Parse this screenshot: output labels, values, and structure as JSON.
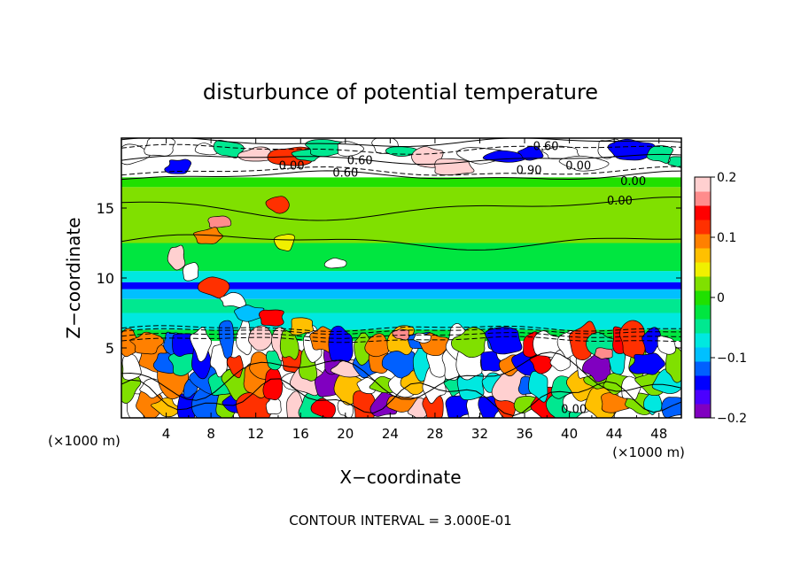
{
  "chart_data": {
    "type": "heatmap",
    "title": "disturbunce of potential temperature",
    "xlabel": "X−coordinate",
    "ylabel": "Z−coordinate",
    "x_unit": "(×1000 m)",
    "x_unit_right": "(×1000 m)",
    "x_ticks": [
      "4",
      "8",
      "12",
      "16",
      "20",
      "24",
      "28",
      "32",
      "36",
      "40",
      "44",
      "48"
    ],
    "x_tick_values": [
      4,
      8,
      12,
      16,
      20,
      24,
      28,
      32,
      36,
      40,
      44,
      48
    ],
    "y_ticks": [
      "5",
      "10",
      "15"
    ],
    "y_tick_values": [
      5,
      10,
      15
    ],
    "xlim": [
      0,
      50
    ],
    "ylim": [
      0,
      20
    ],
    "colorbar": {
      "ticks": [
        "0.2",
        "0.1",
        "0",
        "−0.1",
        "−0.2"
      ],
      "tick_values": [
        0.2,
        0.1,
        0,
        -0.1,
        -0.2
      ],
      "range": [
        -0.2,
        0.2
      ],
      "colors": [
        "#8000c0",
        "#4b00ff",
        "#0000ff",
        "#0060ff",
        "#00c0ff",
        "#00e8e0",
        "#00e890",
        "#00e640",
        "#20e000",
        "#80e000",
        "#f0f000",
        "#ffc000",
        "#ff8000",
        "#ff3000",
        "#ff0000",
        "#ff8c8c",
        "#ffd0d0"
      ]
    },
    "bands": [
      {
        "z": [
          0.0,
          5.5
        ],
        "value": "mixed"
      },
      {
        "z": [
          5.5,
          6.3
        ],
        "value": -0.03
      },
      {
        "z": [
          6.3,
          7.5
        ],
        "value": -0.06
      },
      {
        "z": [
          7.5,
          8.5
        ],
        "value": -0.04
      },
      {
        "z": [
          8.5,
          9.2
        ],
        "value": -0.09
      },
      {
        "z": [
          9.2,
          9.7
        ],
        "value": -0.14
      },
      {
        "z": [
          9.7,
          10.5
        ],
        "value": -0.07
      },
      {
        "z": [
          10.5,
          12.5
        ],
        "value": -0.02
      },
      {
        "z": [
          12.5,
          16.5
        ],
        "value": 0.02
      },
      {
        "z": [
          16.5,
          17.2
        ],
        "value": 0.0
      },
      {
        "z": [
          17.2,
          20.0
        ],
        "value": "mixed"
      }
    ],
    "contour_labels": [
      {
        "x": 37.9,
        "z": 19.4,
        "text": "0.60"
      },
      {
        "x": 15.2,
        "z": 18.0,
        "text": "0.00"
      },
      {
        "x": 21.3,
        "z": 18.4,
        "text": "0.60"
      },
      {
        "x": 20.0,
        "z": 17.5,
        "text": "0.60"
      },
      {
        "x": 36.4,
        "z": 17.7,
        "text": "0.90"
      },
      {
        "x": 40.8,
        "z": 18.0,
        "text": "0.00"
      },
      {
        "x": 45.7,
        "z": 16.9,
        "text": "0.00"
      },
      {
        "x": 44.5,
        "z": 15.5,
        "text": "0.00"
      },
      {
        "x": 40.4,
        "z": 0.6,
        "text": "0.00"
      }
    ],
    "grid": false,
    "legend": "colorbar-right"
  },
  "footer": {
    "contour_interval": "CONTOUR INTERVAL = 3.000E-01"
  }
}
